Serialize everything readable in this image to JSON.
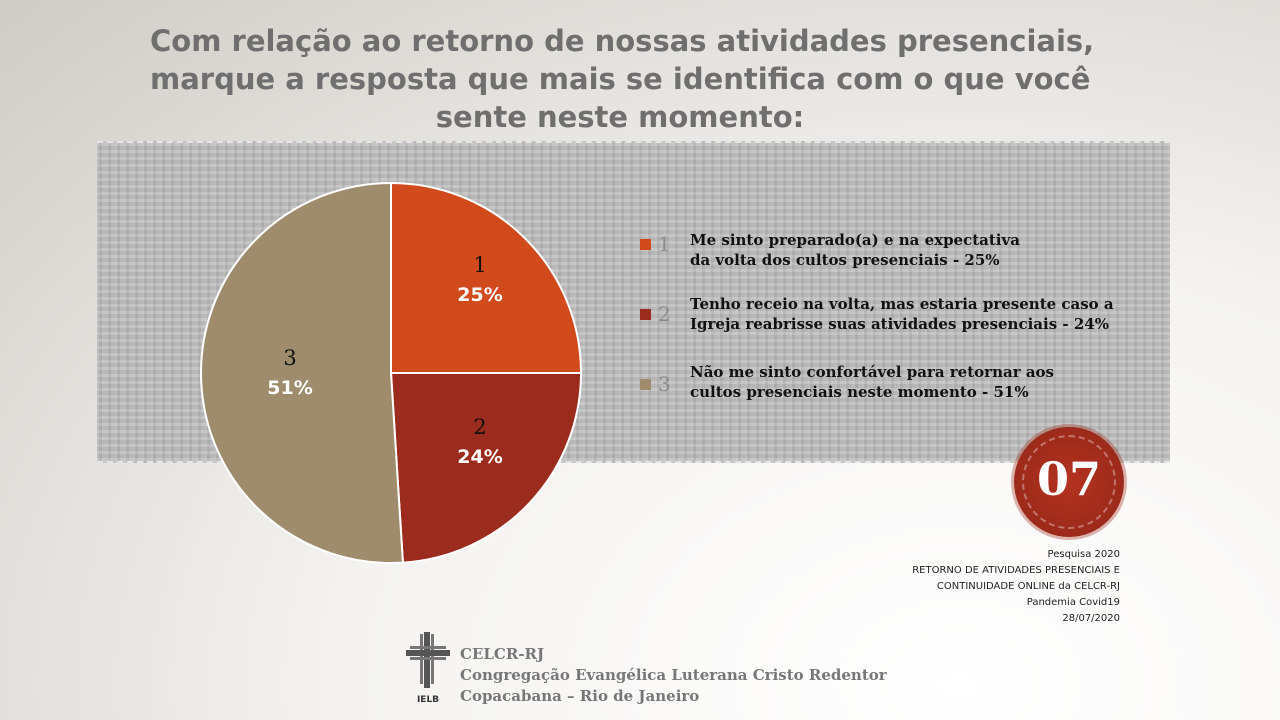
{
  "title": {
    "line1": "Com relação ao retorno de nossas atividades presenciais,",
    "line2": "marque a resposta que mais se identifica com o que você",
    "line3": "sente neste momento:"
  },
  "chart_data": {
    "type": "pie",
    "categories": [
      "1",
      "2",
      "3"
    ],
    "values": [
      25,
      24,
      51
    ],
    "slice_labels": [
      {
        "num": "1",
        "pct": "25%"
      },
      {
        "num": "2",
        "pct": "24%"
      },
      {
        "num": "3",
        "pct": "51%"
      }
    ],
    "colors": [
      "#d14a1c",
      "#9a2b1d",
      "#9e8c6d"
    ],
    "legend": [
      {
        "num": "1",
        "line1": "Me sinto preparado(a) e na expectativa",
        "line2": "da volta dos cultos presenciais - 25%"
      },
      {
        "num": "2",
        "line1": "Tenho receio na volta, mas estaria presente caso a",
        "line2": "Igreja reabrisse suas atividades presenciais -  24%"
      },
      {
        "num": "3",
        "line1": "Não me sinto confortável para retornar aos",
        "line2": "cultos presenciais neste momento - 51%"
      }
    ],
    "legend_position": "right"
  },
  "badge": {
    "number": "07"
  },
  "source": {
    "line1": "Pesquisa  2020",
    "line2": "RETORNO  DE  ATIVIDADES  PRESENCIAIS  E",
    "line3": "CONTINUIDADE  ONLINE  da CELCR-RJ",
    "line4": "Pandemia  Covid19",
    "line5": "28/07/2020"
  },
  "footer": {
    "logo_text": "IELB",
    "line1": "CELCR-RJ",
    "line2": "Congregação Evangélica Luterana Cristo Redentor",
    "line3": "Copacabana – Rio de Janeiro"
  }
}
